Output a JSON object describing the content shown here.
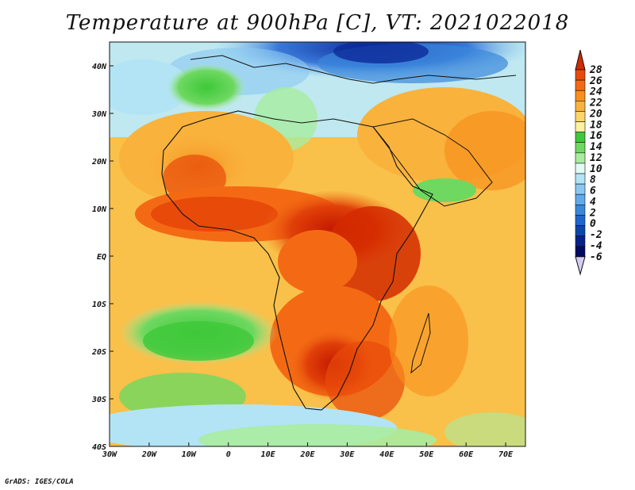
{
  "title": "Temperature at 900hPa [C], VT: 2021022018",
  "credit": "GrADS: IGES/COLA",
  "map": {
    "lon_range": [
      -30,
      75
    ],
    "lat_range": [
      -40,
      45
    ],
    "x_ticks": [
      "30W",
      "20W",
      "10W",
      "0",
      "10E",
      "20E",
      "30E",
      "40E",
      "50E",
      "60E",
      "70E"
    ],
    "y_ticks": [
      "40N",
      "30N",
      "20N",
      "10N",
      "EQ",
      "10S",
      "20S",
      "30S",
      "40S"
    ]
  },
  "colorbar": {
    "labels": [
      "28",
      "26",
      "24",
      "22",
      "20",
      "18",
      "16",
      "14",
      "12",
      "10",
      "8",
      "6",
      "4",
      "2",
      "0",
      "-2",
      "-4",
      "-6"
    ],
    "colors": [
      "#d42a00",
      "#e84a0a",
      "#f46a14",
      "#f8901c",
      "#f9b23c",
      "#fcd46a",
      "#fdf2a2",
      "#3ec83a",
      "#6ed860",
      "#a8eca0",
      "#e2faf4",
      "#b2e4f6",
      "#8ac8f2",
      "#62aaea",
      "#3a88dc",
      "#1e66cc",
      "#0c44b0",
      "#08228a",
      "#000c60",
      "#d6ccf6"
    ]
  }
}
